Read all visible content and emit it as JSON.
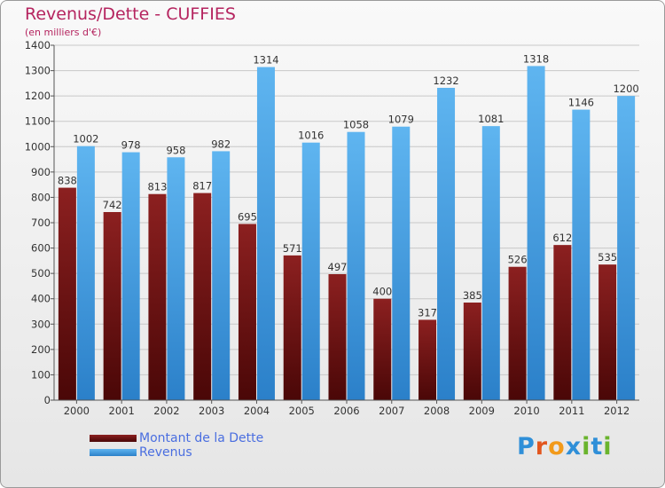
{
  "chart_title": "Revenus/Dette - CUFFIES",
  "chart_subtitle": "(en milliers d'€)",
  "logo_text": "Proxiti",
  "colors": {
    "debt_top": "#8c2020",
    "debt_bottom": "#4a0707",
    "revenue_top": "#5fb5f0",
    "revenue_bottom": "#2b80c9",
    "title": "#b5245f",
    "legend_text": "#4a6ee0"
  },
  "chart_data": {
    "type": "bar",
    "title": "Revenus/Dette - CUFFIES",
    "subtitle": "(en milliers d'€)",
    "categories": [
      "2000",
      "2001",
      "2002",
      "2003",
      "2004",
      "2005",
      "2006",
      "2007",
      "2008",
      "2009",
      "2010",
      "2011",
      "2012"
    ],
    "series": [
      {
        "name": "Montant de la Dette",
        "values": [
          838,
          742,
          813,
          817,
          695,
          571,
          497,
          400,
          317,
          385,
          526,
          612,
          535
        ]
      },
      {
        "name": "Revenus",
        "values": [
          1002,
          978,
          958,
          982,
          1314,
          1016,
          1058,
          1079,
          1232,
          1081,
          1318,
          1146,
          1200
        ]
      }
    ],
    "ylim": [
      0,
      1400
    ],
    "yticks": [
      0,
      100,
      200,
      300,
      400,
      500,
      600,
      700,
      800,
      900,
      1000,
      1100,
      1200,
      1300,
      1400
    ],
    "grid": true,
    "legend_position": "bottom-left"
  }
}
